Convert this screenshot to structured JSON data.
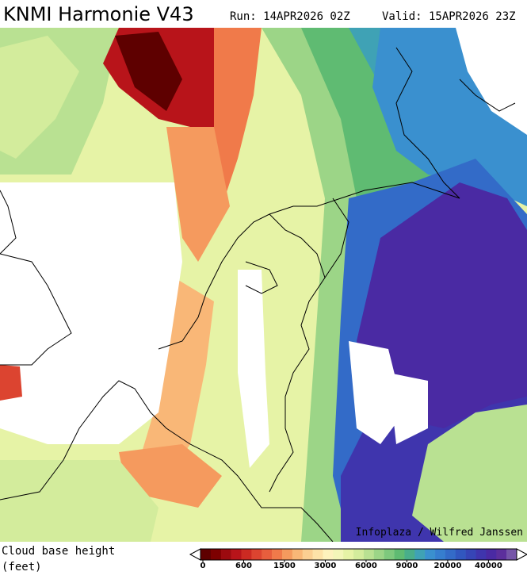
{
  "header": {
    "title": "KNMI Harmonie V43",
    "run": "Run: 14APR2026 02Z",
    "valid": "Valid: 15APR2026 23Z"
  },
  "credit": "Infoplaza / Wilfred Janssen",
  "legend": {
    "title": "Cloud base height",
    "unit": "(feet)",
    "ticks": [
      0,
      600,
      1500,
      3000,
      6000,
      9000,
      20000,
      40000
    ],
    "colors": [
      "#5e0000",
      "#7d0000",
      "#9c0a0f",
      "#b8141a",
      "#cc2a22",
      "#dc4430",
      "#e75e3d",
      "#f07a4a",
      "#f59a5e",
      "#f9b777",
      "#fbcf92",
      "#fde2a8",
      "#fdf2bd",
      "#f3f6b8",
      "#e6f3a6",
      "#d3ec9c",
      "#b9e192",
      "#9cd587",
      "#7ec97d",
      "#5fbb72",
      "#49ae8a",
      "#3fa2b5",
      "#3a90cf",
      "#367ecf",
      "#336bc8",
      "#3157bf",
      "#3645b6",
      "#3f35ad",
      "#4a2aa3",
      "#5c2f9c",
      "#7555a8"
    ]
  }
}
